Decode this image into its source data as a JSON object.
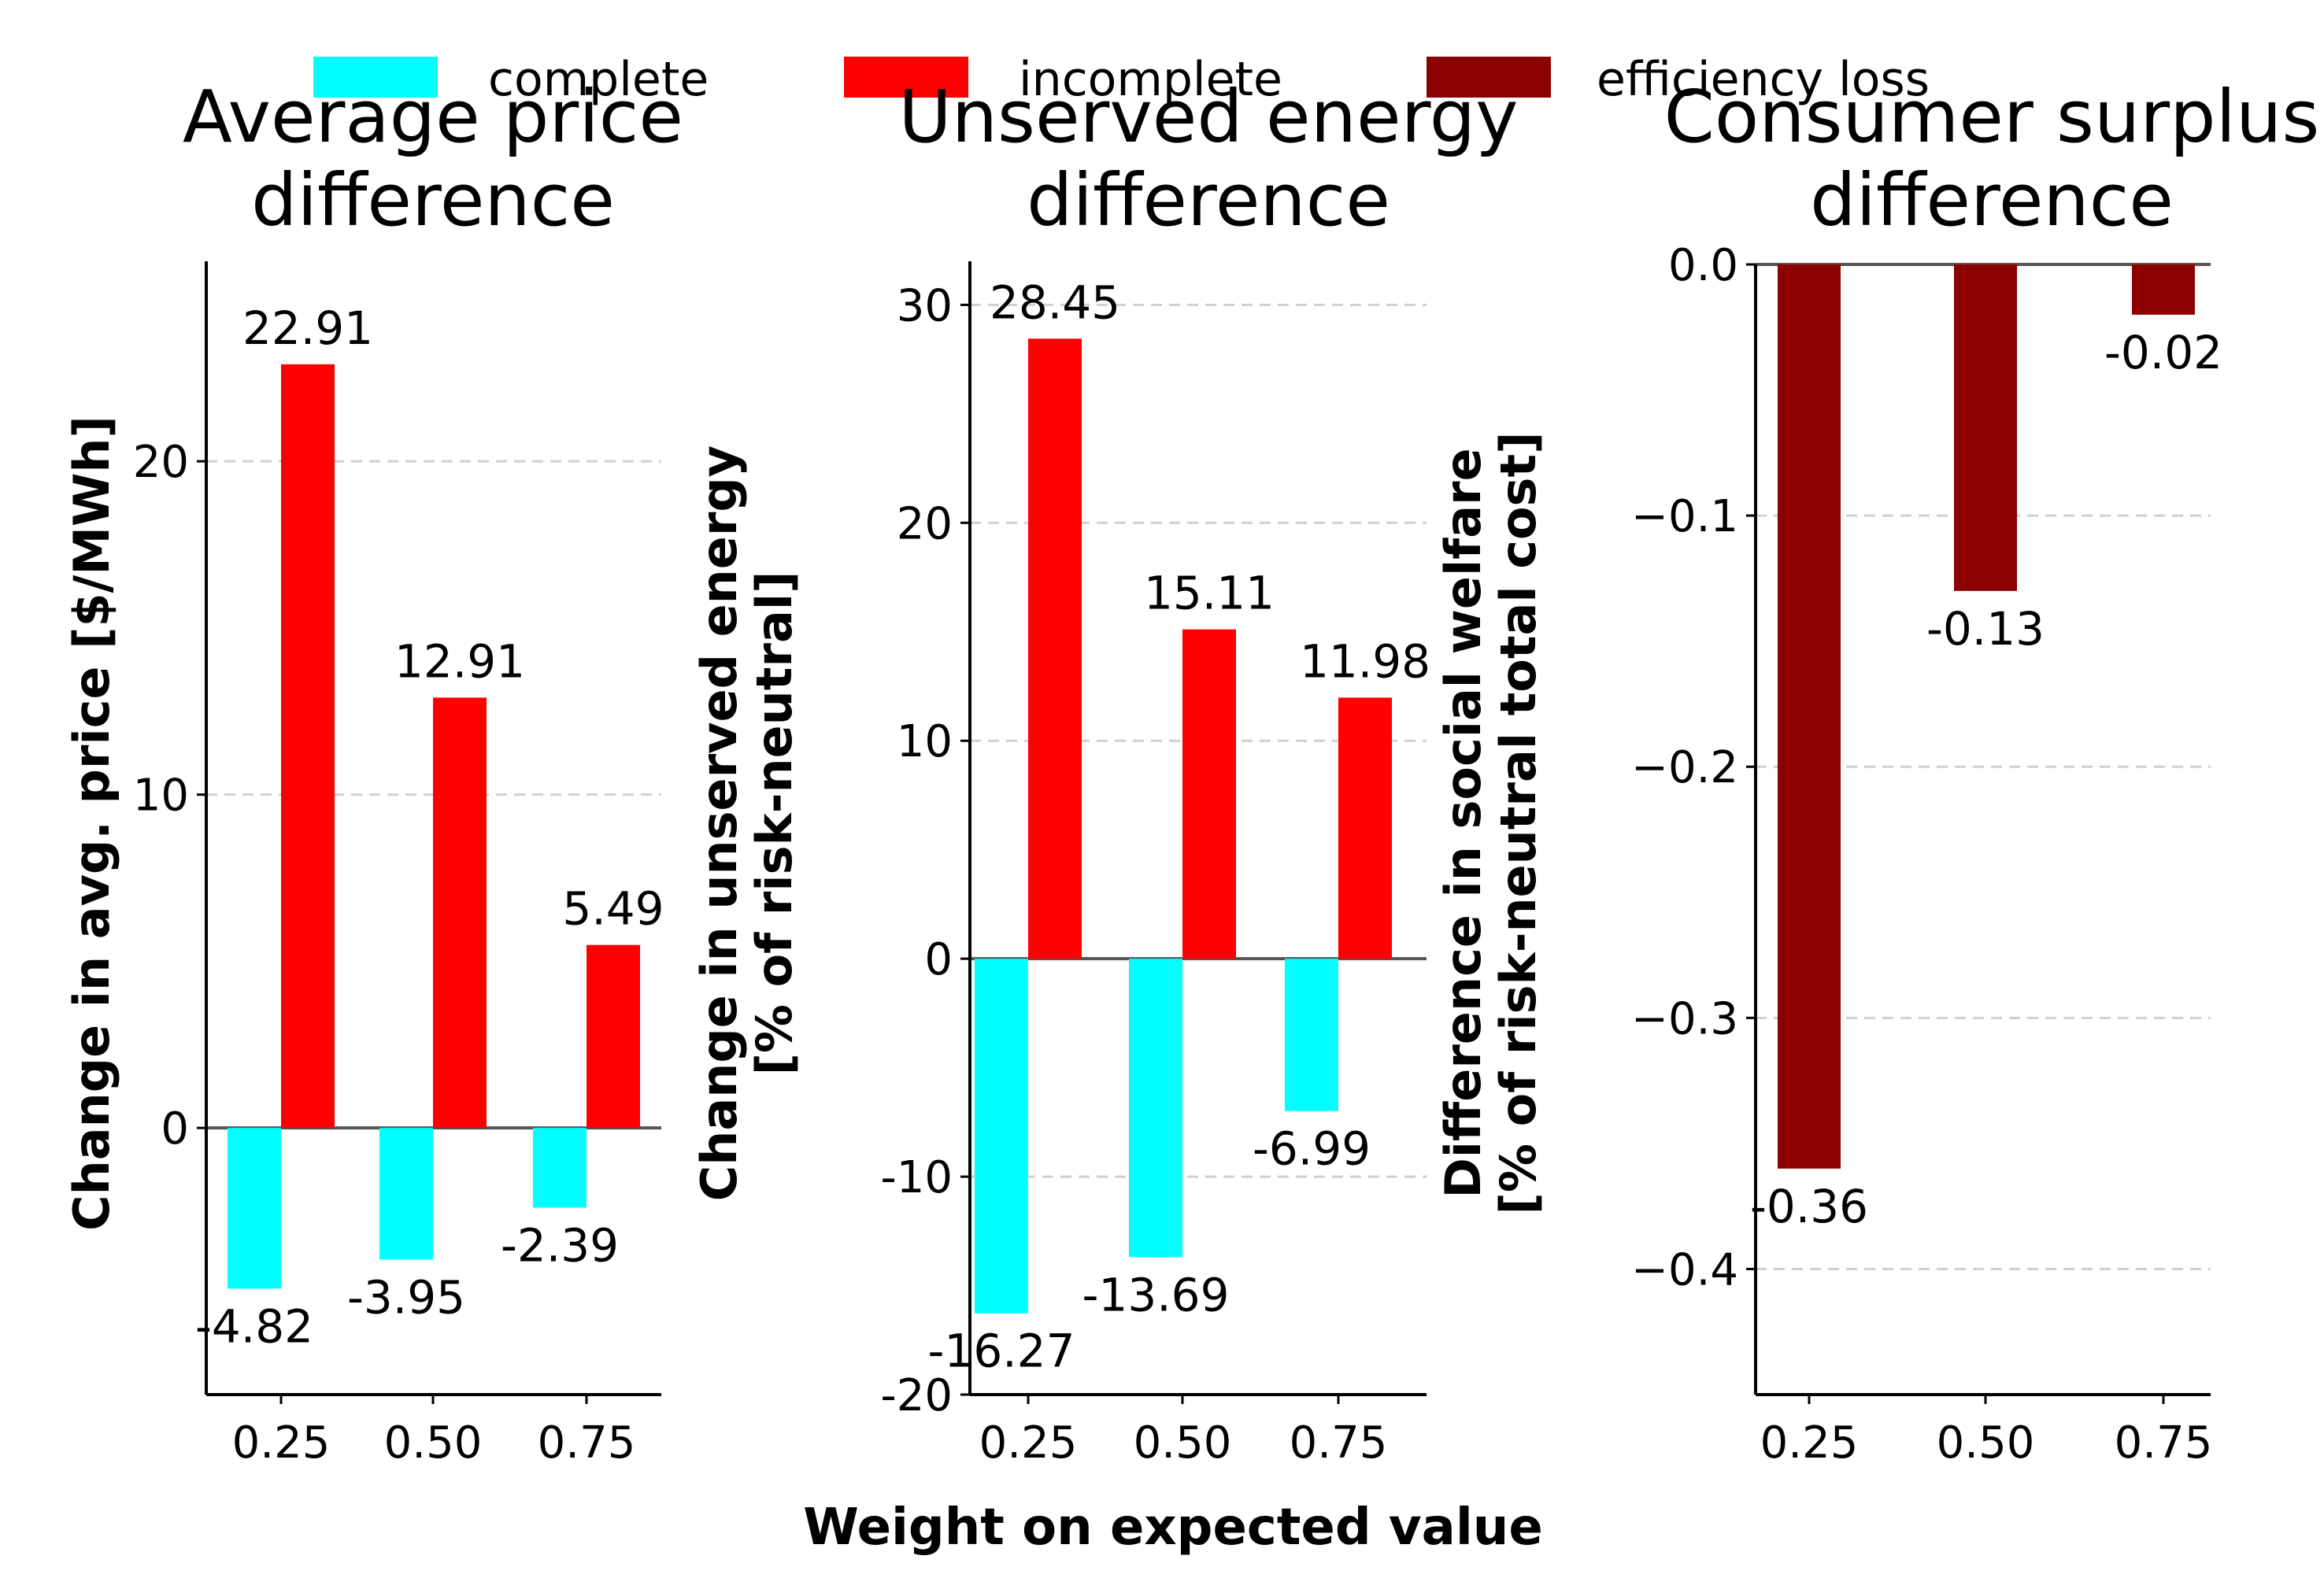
{
  "legend": [
    {
      "label": "complete",
      "color": "#00ffff"
    },
    {
      "label": "incomplete",
      "color": "#ff0000"
    },
    {
      "label": "efficiency loss",
      "color": "#8b0000"
    }
  ],
  "xlabel": "Weight on expected value",
  "chart_data": [
    {
      "type": "bar",
      "title": "Average price\ndifference",
      "ylabel": "Change in avg. price [$/MWh]",
      "categories": [
        "0.25",
        "0.50",
        "0.75"
      ],
      "ylim": [
        -8,
        26
      ],
      "yticks": [
        0,
        10,
        20
      ],
      "grid": true,
      "series": [
        {
          "name": "complete",
          "color": "#00ffff",
          "values": [
            -4.82,
            -3.95,
            -2.39
          ],
          "labels": [
            "-4.82",
            "-3.95",
            "-2.39"
          ]
        },
        {
          "name": "incomplete",
          "color": "#ff0000",
          "values": [
            22.91,
            12.91,
            5.49
          ],
          "labels": [
            "22.91",
            "12.91",
            "5.49"
          ]
        }
      ]
    },
    {
      "type": "bar",
      "title": "Unserved energy\ndifference",
      "ylabel": "Change in unserved energy\n[% of risk-neutral]",
      "categories": [
        "0.25",
        "0.50",
        "0.75"
      ],
      "ylim": [
        -20,
        32
      ],
      "yticks": [
        -20,
        -10,
        0,
        10,
        20,
        30
      ],
      "grid": true,
      "series": [
        {
          "name": "complete",
          "color": "#00ffff",
          "values": [
            -16.27,
            -13.69,
            -6.99
          ],
          "labels": [
            "-16.27",
            "-13.69",
            "-6.99"
          ]
        },
        {
          "name": "incomplete",
          "color": "#ff0000",
          "values": [
            28.45,
            15.11,
            11.98
          ],
          "labels": [
            "28.45",
            "15.11",
            "11.98"
          ]
        }
      ]
    },
    {
      "type": "bar",
      "title": "Consumer surplus\ndifference",
      "ylabel": "Difference in social welfare\n[% of risk-neutral total cost]",
      "categories": [
        "0.25",
        "0.50",
        "0.75"
      ],
      "ylim": [
        -0.45,
        0.0
      ],
      "yticks": [
        -0.4,
        -0.3,
        -0.2,
        -0.1,
        0.0
      ],
      "ytick_labels": [
        "−0.4",
        "−0.3",
        "−0.2",
        "−0.1",
        "0.0"
      ],
      "grid": true,
      "series": [
        {
          "name": "efficiency loss",
          "color": "#8b0000",
          "values": [
            -0.36,
            -0.13,
            -0.02
          ],
          "labels": [
            "-0.36",
            "-0.13",
            "-0.02"
          ]
        }
      ]
    }
  ]
}
